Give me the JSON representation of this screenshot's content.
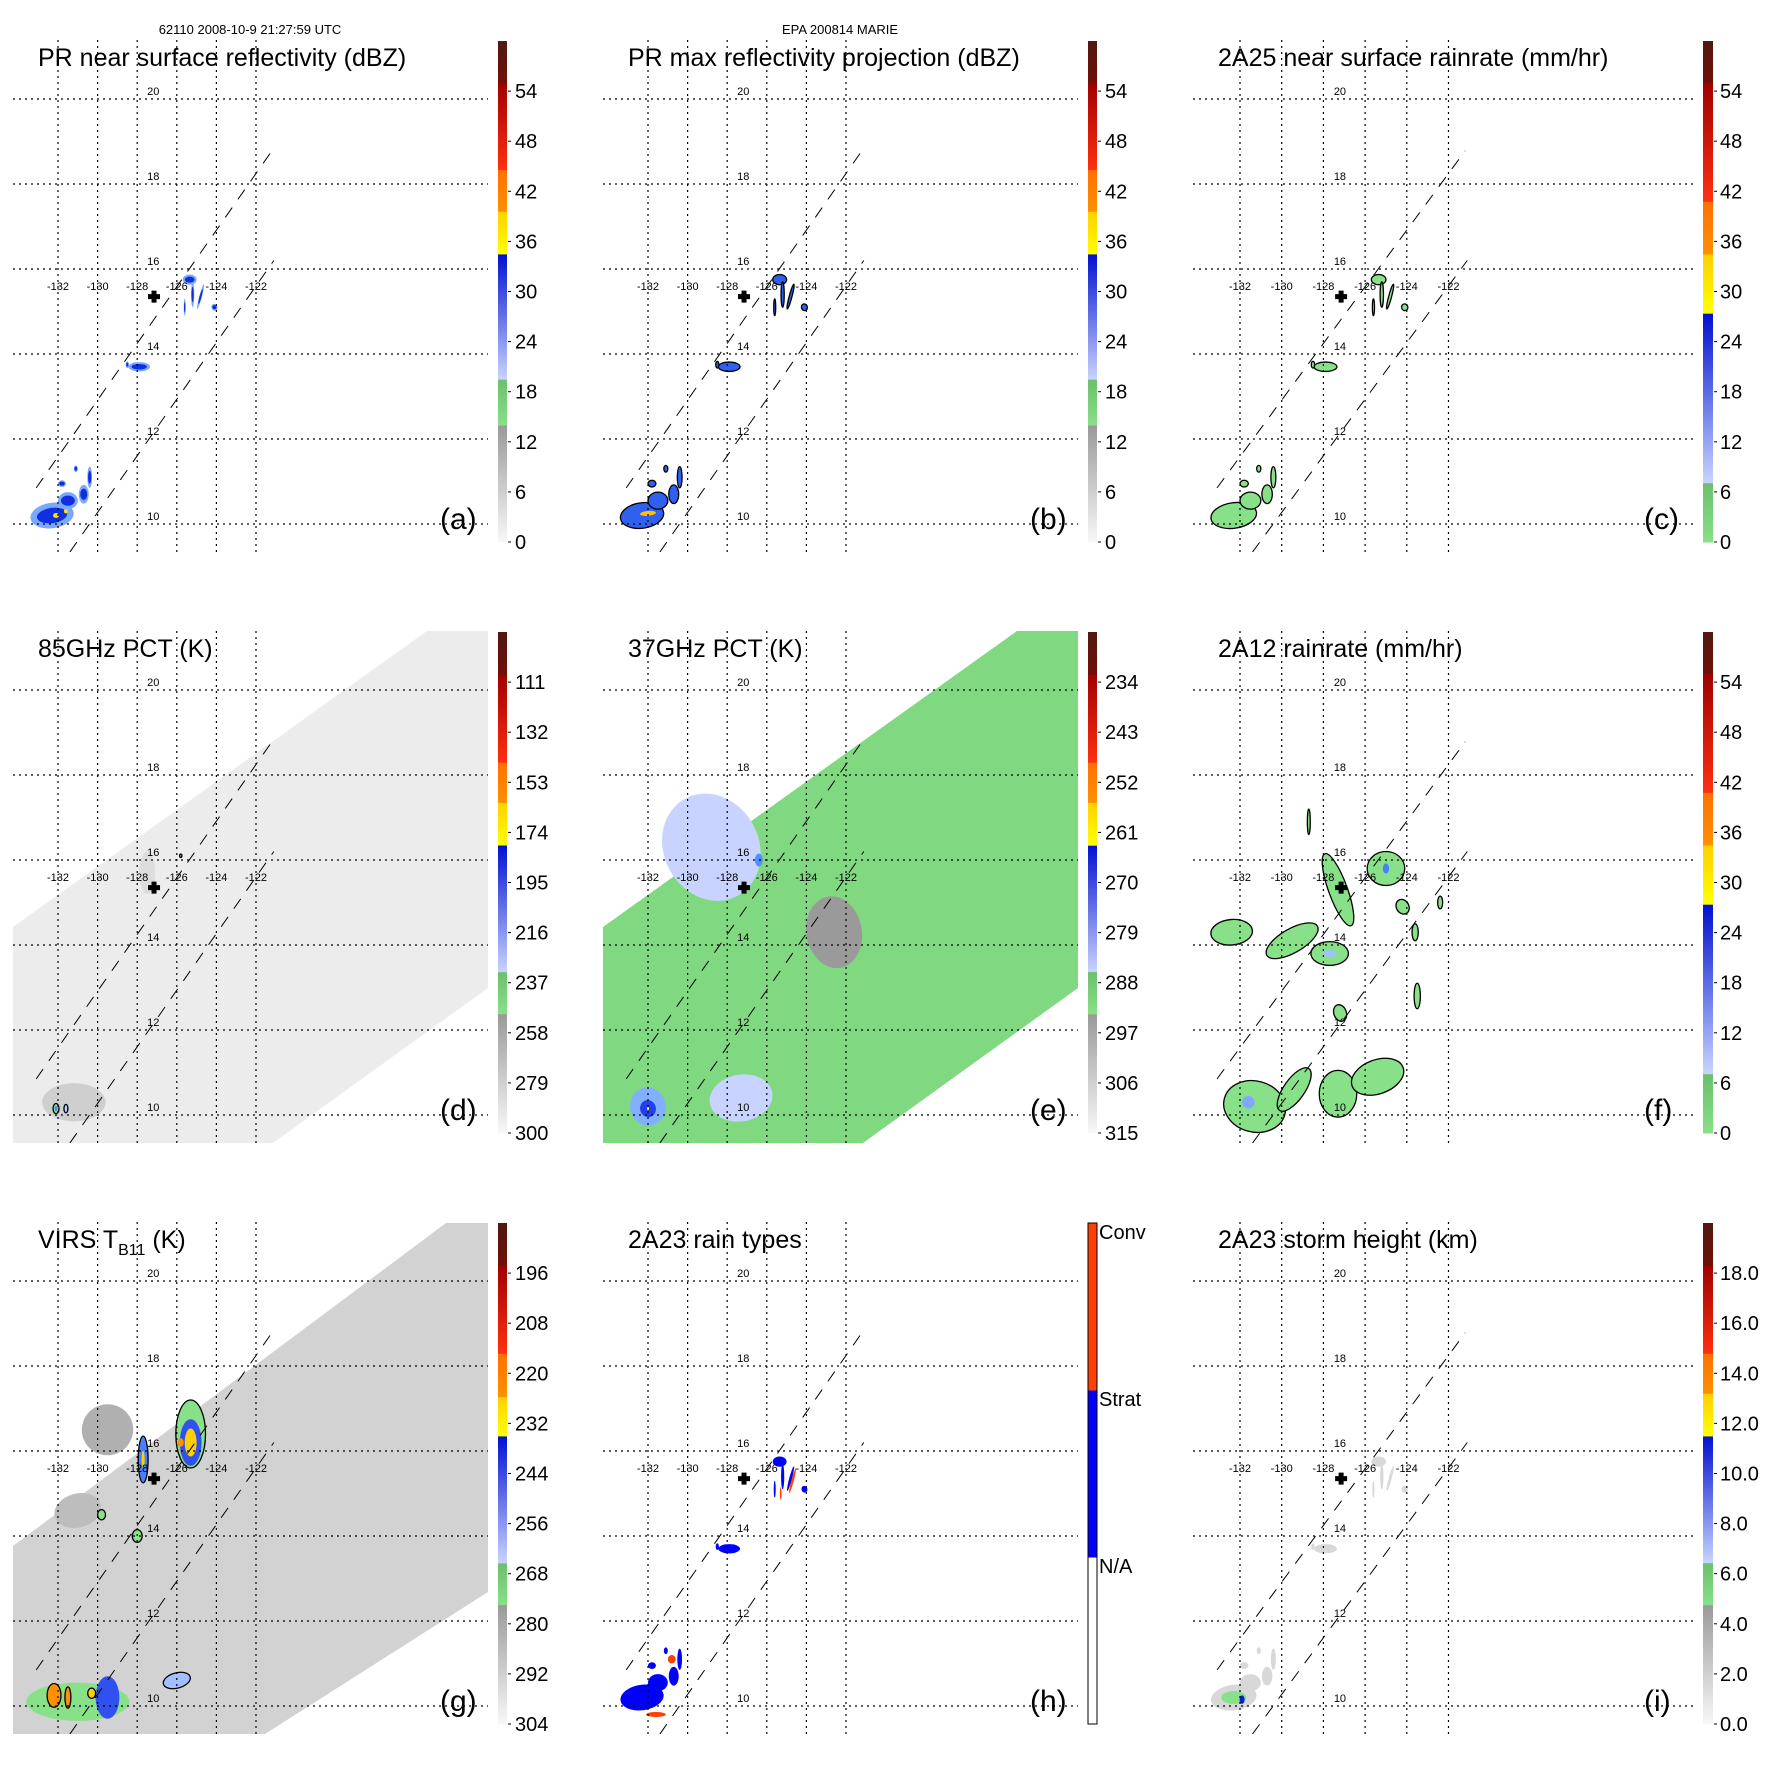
{
  "header": {
    "orbit_time": "62110 2008-10-9 21:27:59 UTC",
    "storm": "EPA 200814 MARIE"
  },
  "map": {
    "lat_ticks": [
      "20",
      "18",
      "16",
      "14",
      "12",
      "10"
    ],
    "lon_ticks": [
      "-132",
      "-130",
      "-128",
      "-126",
      "-124",
      "-122"
    ],
    "storm_center_icon": "cross-icon"
  },
  "panels": [
    {
      "id": "a",
      "title": "PR near surface reflectivity (dBZ)",
      "letter": "(a)",
      "colorbar": {
        "range": [
          0,
          60
        ],
        "bands": [
          [
            0,
            14,
            "#f8f8f8",
            "#999999"
          ],
          [
            14,
            19.5,
            "#88e088",
            "#6cbf6c"
          ],
          [
            19.5,
            34.5,
            "#c8d4ff",
            "#0010d0"
          ],
          [
            34.5,
            39.6,
            "#ffff00",
            "#ffd000"
          ],
          [
            39.6,
            44.6,
            "#ff9000",
            "#ff7000"
          ],
          [
            44.6,
            55,
            "#ff3010",
            "#a00000"
          ],
          [
            55,
            60,
            "#701008",
            "#501810"
          ]
        ],
        "ticks": [
          "0",
          "6",
          "12",
          "18",
          "24",
          "30",
          "36",
          "42",
          "48",
          "54"
        ]
      }
    },
    {
      "id": "b",
      "title": "PR max reflectivity projection (dBZ)",
      "letter": "(b)",
      "colorbar": {
        "range": [
          0,
          60
        ],
        "bands": [
          [
            0,
            14,
            "#f8f8f8",
            "#999999"
          ],
          [
            14,
            19.5,
            "#88e088",
            "#6cbf6c"
          ],
          [
            19.5,
            34.5,
            "#c8d4ff",
            "#0010d0"
          ],
          [
            34.5,
            39.6,
            "#ffff00",
            "#ffd000"
          ],
          [
            39.6,
            44.6,
            "#ff9000",
            "#ff7000"
          ],
          [
            44.6,
            55,
            "#ff3010",
            "#a00000"
          ],
          [
            55,
            60,
            "#701008",
            "#501810"
          ]
        ],
        "ticks": [
          "0",
          "6",
          "12",
          "18",
          "24",
          "30",
          "36",
          "42",
          "48",
          "54"
        ]
      }
    },
    {
      "id": "c",
      "title": "2A25 near surface rainrate (mm/hr)",
      "letter": "(c)",
      "colorbar": {
        "range": [
          0,
          60
        ],
        "bands": [
          [
            0,
            7.1,
            "#88e088",
            "#6cbf6c"
          ],
          [
            7.1,
            27.4,
            "#c8d4ff",
            "#0010d0"
          ],
          [
            27.4,
            34.5,
            "#ffff00",
            "#ffd000"
          ],
          [
            34.5,
            40.8,
            "#ff9000",
            "#ff7000"
          ],
          [
            40.8,
            55,
            "#ff3010",
            "#a00000"
          ],
          [
            55,
            60,
            "#701008",
            "#501810"
          ]
        ],
        "ticks": [
          "0",
          "6",
          "12",
          "18",
          "24",
          "30",
          "36",
          "42",
          "48",
          "54"
        ]
      }
    },
    {
      "id": "d",
      "title": "85GHz PCT (K)",
      "letter": "(d)",
      "colorbar": {
        "range": [
          300,
          90
        ],
        "bands": [
          [
            300,
            250,
            "#f8f8f8",
            "#999999"
          ],
          [
            250,
            232.4,
            "#88e088",
            "#6cbf6c"
          ],
          [
            232.4,
            179.3,
            "#c8d4ff",
            "#0010d0"
          ],
          [
            179.3,
            161.4,
            "#ffff00",
            "#ffd000"
          ],
          [
            161.4,
            144.6,
            "#ff9000",
            "#ff7000"
          ],
          [
            144.6,
            107.9,
            "#ff3010",
            "#a00000"
          ],
          [
            107.9,
            90,
            "#701008",
            "#501810"
          ]
        ],
        "ticks": [
          "300",
          "279",
          "258",
          "237",
          "216",
          "195",
          "174",
          "153",
          "132",
          "111"
        ]
      }
    },
    {
      "id": "e",
      "title": "37GHz PCT (K)",
      "letter": "(e)",
      "colorbar": {
        "range": [
          315,
          225
        ],
        "bands": [
          [
            315,
            293.6,
            "#f8f8f8",
            "#999999"
          ],
          [
            293.6,
            286,
            "#88e088",
            "#6cbf6c"
          ],
          [
            286,
            263.3,
            "#c8d4ff",
            "#0010d0"
          ],
          [
            263.3,
            255.6,
            "#ffff00",
            "#ffd000"
          ],
          [
            255.6,
            248.4,
            "#ff9000",
            "#ff7000"
          ],
          [
            248.4,
            232.6,
            "#ff3010",
            "#a00000"
          ],
          [
            232.6,
            225,
            "#701008",
            "#501810"
          ]
        ],
        "ticks": [
          "315",
          "306",
          "297",
          "288",
          "279",
          "270",
          "261",
          "252",
          "243",
          "234"
        ]
      }
    },
    {
      "id": "f",
      "title": "2A12 rainrate (mm/hr)",
      "letter": "(f)",
      "colorbar": {
        "range": [
          0,
          60
        ],
        "bands": [
          [
            0,
            7.1,
            "#88e088",
            "#6cbf6c"
          ],
          [
            7.1,
            27.4,
            "#c8d4ff",
            "#0010d0"
          ],
          [
            27.4,
            34.5,
            "#ffff00",
            "#ffd000"
          ],
          [
            34.5,
            40.8,
            "#ff9000",
            "#ff7000"
          ],
          [
            40.8,
            55,
            "#ff3010",
            "#a00000"
          ],
          [
            55,
            60,
            "#701008",
            "#501810"
          ]
        ],
        "ticks": [
          "0",
          "6",
          "12",
          "18",
          "24",
          "30",
          "36",
          "42",
          "48",
          "54"
        ]
      }
    },
    {
      "id": "g",
      "title": "VIRS T",
      "title_sub": "B11",
      "title_suffix": " (K)",
      "letter": "(g)",
      "colorbar": {
        "range": [
          304,
          184
        ],
        "bands": [
          [
            304,
            275.4,
            "#f8f8f8",
            "#999999"
          ],
          [
            275.4,
            265.4,
            "#88e088",
            "#6cbf6c"
          ],
          [
            265.4,
            235,
            "#c8d4ff",
            "#0010d0"
          ],
          [
            235,
            225.6,
            "#ffff00",
            "#ffd000"
          ],
          [
            225.6,
            215.2,
            "#ff9000",
            "#ff7000"
          ],
          [
            215.2,
            194.2,
            "#ff3010",
            "#a00000"
          ],
          [
            194.2,
            184,
            "#701008",
            "#501810"
          ]
        ],
        "ticks": [
          "304",
          "292",
          "280",
          "268",
          "256",
          "244",
          "232",
          "220",
          "208",
          "196"
        ]
      }
    },
    {
      "id": "h",
      "title": "2A23 rain types",
      "letter": "(h)",
      "colorbar": {
        "range": [
          0,
          3
        ],
        "outlined": true,
        "bands": [
          [
            0,
            1,
            "#ffffff",
            "#ffffff"
          ],
          [
            1,
            2,
            "#0000ff",
            "#0000ff"
          ],
          [
            2,
            3,
            "#ff4000",
            "#ff4000"
          ]
        ],
        "ticks": [
          "N/A",
          "Strat",
          "Conv"
        ],
        "tick_values": [
          1,
          2,
          3
        ]
      }
    },
    {
      "id": "i",
      "title": "2A23 storm height (km)",
      "letter": "(i)",
      "colorbar": {
        "range": [
          0,
          20
        ],
        "bands": [
          [
            0,
            4.76,
            "#f8f8f8",
            "#999999"
          ],
          [
            4.76,
            6.44,
            "#88e088",
            "#6cbf6c"
          ],
          [
            6.44,
            11.5,
            "#c8d4ff",
            "#0010d0"
          ],
          [
            11.5,
            13.2,
            "#ffff00",
            "#ffd000"
          ],
          [
            13.2,
            14.8,
            "#ff9000",
            "#ff7000"
          ],
          [
            14.8,
            18.3,
            "#ff3010",
            "#a00000"
          ],
          [
            18.3,
            20,
            "#701008",
            "#501810"
          ]
        ],
        "ticks": [
          "0.0",
          "2.0",
          "4.0",
          "6.0",
          "8.0",
          "10.0",
          "12.0",
          "14.0",
          "16.0",
          "18.0"
        ]
      }
    }
  ]
}
